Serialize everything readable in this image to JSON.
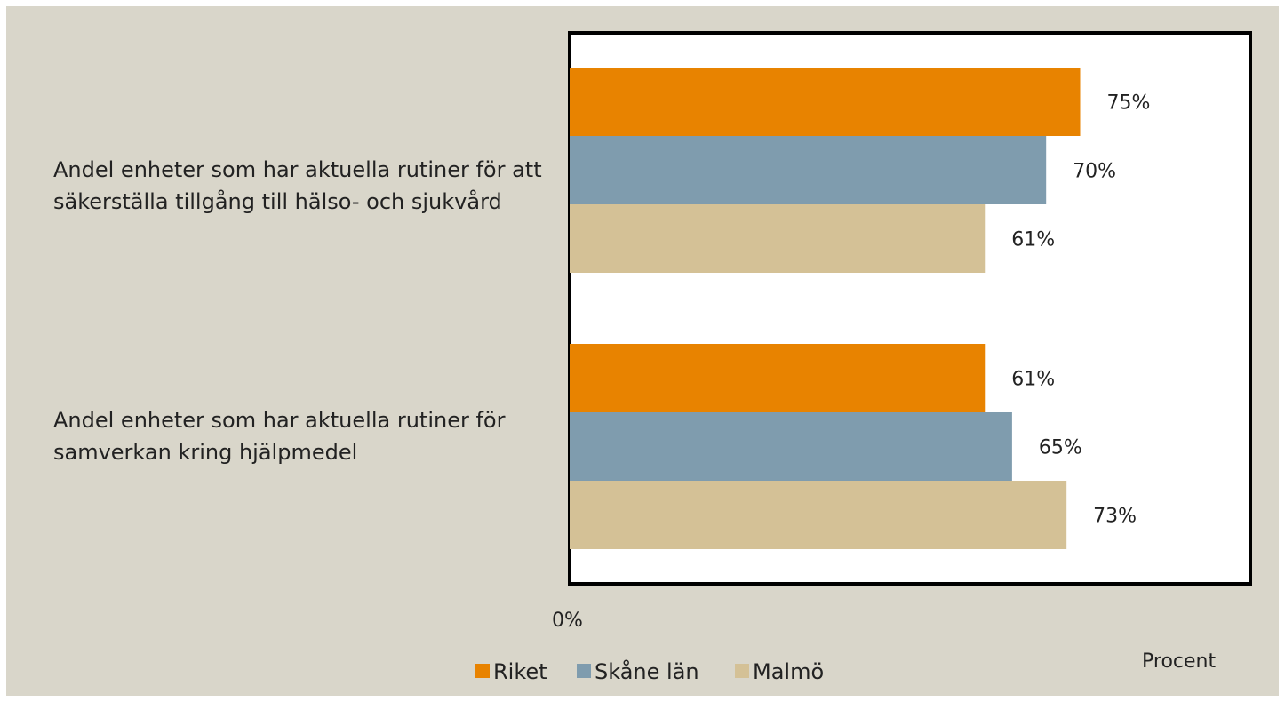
{
  "chart_data": {
    "type": "bar",
    "orientation": "horizontal",
    "categories": [
      "Andel enheter som har aktuella rutiner för att säkerställa tillgång till hälso- och sjukvård",
      "Andel enheter som har aktuella rutiner för samverkan kring hjälpmedel"
    ],
    "series": [
      {
        "name": "Riket",
        "values": [
          75,
          61
        ],
        "labels": [
          "75%",
          "61%"
        ],
        "color": "#e88300"
      },
      {
        "name": "Skåne län",
        "values": [
          70,
          65
        ],
        "labels": [
          "70%",
          "65%"
        ],
        "color": "#7f9cae"
      },
      {
        "name": "Malmö",
        "values": [
          61,
          73
        ],
        "labels": [
          "61%",
          "73%"
        ],
        "color": "#d4c196"
      }
    ],
    "xlim": [
      0,
      100
    ],
    "x_tick_label": "0%",
    "xlabel": "Procent",
    "legend_position": "bottom",
    "grid": false
  }
}
